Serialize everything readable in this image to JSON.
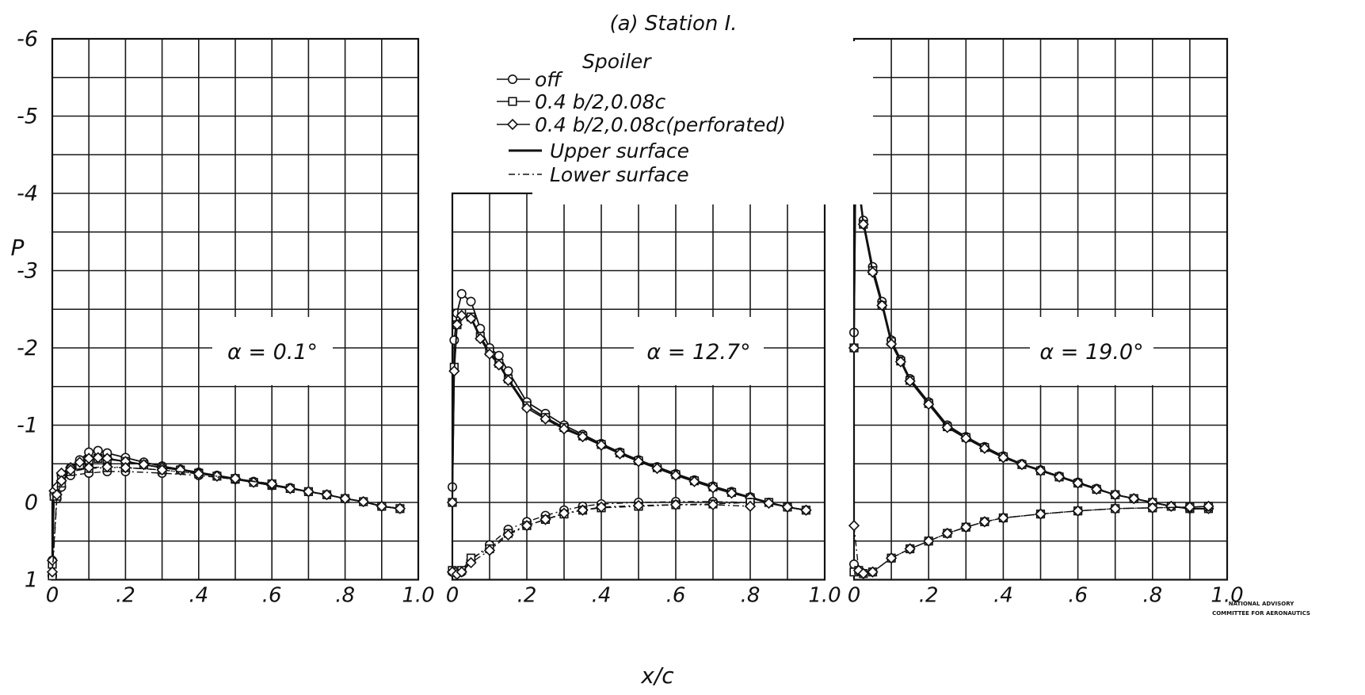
{
  "title": "(a) Station I.",
  "ylabel": "P",
  "xlabel": "x/c",
  "legend": {
    "heading": "Spoiler",
    "entries": [
      {
        "label": "off",
        "marker": "circle"
      },
      {
        "label": "0.4 b/2,0.08c",
        "marker": "square"
      },
      {
        "label": "0.4 b/2,0.08c(perforated)",
        "marker": "diamond"
      }
    ],
    "line_styles": [
      {
        "label": "Upper surface",
        "dash": "solid"
      },
      {
        "label": "Lower surface",
        "dash": "dashed"
      }
    ]
  },
  "watermark": [
    "NATIONAL ADVISORY",
    "COMMITTEE FOR AERONAUTICS"
  ],
  "chart_data": [
    {
      "type": "line",
      "annotation": "α = 0.1°",
      "xlim": [
        0,
        1.0
      ],
      "ylim": [
        1,
        -6
      ],
      "y_inverted": true,
      "xticks": [
        "0",
        ".2",
        ".4",
        ".6",
        ".8",
        "1.0"
      ],
      "yticks": [
        "-6",
        "-5",
        "-4",
        "-3",
        "-2",
        "-1",
        "0",
        "1"
      ],
      "grid": true,
      "series": [
        {
          "spoiler": "off",
          "surface": "upper",
          "x": [
            0,
            0.005,
            0.0125,
            0.025,
            0.05,
            0.075,
            0.1,
            0.125,
            0.15,
            0.2,
            0.25,
            0.3,
            0.35,
            0.4,
            0.45,
            0.5,
            0.55,
            0.6,
            0.65,
            0.7,
            0.75,
            0.8,
            0.85,
            0.9,
            0.95
          ],
          "y": [
            0.75,
            -0.1,
            -0.15,
            -0.35,
            -0.45,
            -0.55,
            -0.65,
            -0.67,
            -0.64,
            -0.58,
            -0.52,
            -0.47,
            -0.43,
            -0.39,
            -0.35,
            -0.31,
            -0.27,
            -0.23,
            -0.19,
            -0.14,
            -0.1,
            -0.05,
            -0.01,
            0.05,
            0.08
          ]
        },
        {
          "spoiler": "0.4 b/2,0.08c",
          "surface": "upper",
          "x": [
            0,
            0.005,
            0.0125,
            0.025,
            0.05,
            0.075,
            0.1,
            0.125,
            0.15,
            0.2,
            0.25,
            0.3,
            0.35,
            0.4,
            0.45,
            0.5,
            0.55,
            0.6,
            0.65,
            0.7,
            0.75,
            0.8,
            0.85,
            0.9,
            0.95
          ],
          "y": [
            0.8,
            -0.08,
            -0.12,
            -0.3,
            -0.4,
            -0.48,
            -0.55,
            -0.57,
            -0.56,
            -0.53,
            -0.49,
            -0.45,
            -0.42,
            -0.38,
            -0.34,
            -0.3,
            -0.26,
            -0.22,
            -0.18,
            -0.14,
            -0.1,
            -0.05,
            -0.01,
            0.05,
            0.08
          ]
        },
        {
          "spoiler": "0.4 b/2,0.08c(perforated)",
          "surface": "upper",
          "x": [
            0,
            0.005,
            0.0125,
            0.025,
            0.05,
            0.075,
            0.1,
            0.125,
            0.15,
            0.2,
            0.25,
            0.3,
            0.35,
            0.4,
            0.45,
            0.5,
            0.55,
            0.6,
            0.65,
            0.7,
            0.75,
            0.8,
            0.85,
            0.9,
            0.95
          ],
          "y": [
            0.75,
            -0.15,
            -0.2,
            -0.38,
            -0.45,
            -0.52,
            -0.57,
            -0.58,
            -0.57,
            -0.53,
            -0.49,
            -0.45,
            -0.42,
            -0.38,
            -0.34,
            -0.3,
            -0.26,
            -0.22,
            -0.18,
            -0.14,
            -0.1,
            -0.05,
            -0.01,
            0.05,
            0.08
          ]
        },
        {
          "spoiler": "off",
          "surface": "lower",
          "x": [
            0,
            0.0125,
            0.025,
            0.05,
            0.1,
            0.15,
            0.2,
            0.3,
            0.4,
            0.5,
            0.6
          ],
          "y": [
            0.95,
            -0.05,
            -0.2,
            -0.35,
            -0.38,
            -0.4,
            -0.4,
            -0.38,
            -0.35,
            -0.3,
            -0.24
          ]
        },
        {
          "spoiler": "0.4 b/2,0.08c",
          "surface": "lower",
          "x": [
            0,
            0.0125,
            0.025,
            0.05,
            0.1,
            0.15,
            0.2,
            0.3,
            0.4,
            0.5,
            0.6
          ],
          "y": [
            0.95,
            -0.08,
            -0.25,
            -0.4,
            -0.44,
            -0.45,
            -0.45,
            -0.42,
            -0.37,
            -0.31,
            -0.24
          ]
        },
        {
          "spoiler": "0.4 b/2,0.08c(perforated)",
          "surface": "lower",
          "x": [
            0,
            0.0125,
            0.025,
            0.05,
            0.1,
            0.15,
            0.2,
            0.3,
            0.4,
            0.5,
            0.6
          ],
          "y": [
            0.9,
            -0.1,
            -0.28,
            -0.42,
            -0.45,
            -0.46,
            -0.45,
            -0.42,
            -0.37,
            -0.31,
            -0.24
          ]
        }
      ]
    },
    {
      "type": "line",
      "annotation": "α = 12.7°",
      "xlim": [
        0,
        1.0
      ],
      "ylim": [
        1,
        -4
      ],
      "y_inverted": true,
      "xticks": [
        "0",
        ".2",
        ".4",
        ".6",
        ".8",
        "1.0"
      ],
      "grid": true,
      "series": [
        {
          "spoiler": "off",
          "surface": "upper",
          "x": [
            0,
            0.005,
            0.0125,
            0.025,
            0.05,
            0.075,
            0.1,
            0.125,
            0.15,
            0.2,
            0.25,
            0.3,
            0.35,
            0.4,
            0.45,
            0.5,
            0.55,
            0.6,
            0.65,
            0.7,
            0.75,
            0.8,
            0.85,
            0.9,
            0.95
          ],
          "y": [
            -0.2,
            -2.1,
            -2.45,
            -2.7,
            -2.6,
            -2.25,
            -2.0,
            -1.9,
            -1.7,
            -1.3,
            -1.15,
            -1.0,
            -0.88,
            -0.76,
            -0.65,
            -0.55,
            -0.46,
            -0.37,
            -0.29,
            -0.21,
            -0.14,
            -0.07,
            0.0,
            0.06,
            0.1
          ]
        },
        {
          "spoiler": "0.4 b/2,0.08c",
          "surface": "upper",
          "x": [
            0,
            0.005,
            0.0125,
            0.025,
            0.05,
            0.075,
            0.1,
            0.125,
            0.15,
            0.2,
            0.25,
            0.3,
            0.35,
            0.4,
            0.45,
            0.5,
            0.55,
            0.6,
            0.65,
            0.7,
            0.75,
            0.8,
            0.85,
            0.9,
            0.95
          ],
          "y": [
            0.0,
            -1.75,
            -2.3,
            -2.45,
            -2.4,
            -2.15,
            -1.95,
            -1.8,
            -1.6,
            -1.25,
            -1.1,
            -0.97,
            -0.86,
            -0.75,
            -0.64,
            -0.54,
            -0.45,
            -0.36,
            -0.28,
            -0.2,
            -0.13,
            -0.06,
            0.0,
            0.06,
            0.1
          ]
        },
        {
          "spoiler": "0.4 b/2,0.08c(perforated)",
          "surface": "upper",
          "x": [
            0,
            0.005,
            0.0125,
            0.025,
            0.05,
            0.075,
            0.1,
            0.125,
            0.15,
            0.2,
            0.25,
            0.3,
            0.35,
            0.4,
            0.45,
            0.5,
            0.55,
            0.6,
            0.65,
            0.7,
            0.75,
            0.8,
            0.85,
            0.9,
            0.95
          ],
          "y": [
            0.0,
            -1.7,
            -2.3,
            -2.42,
            -2.38,
            -2.12,
            -1.92,
            -1.78,
            -1.58,
            -1.22,
            -1.08,
            -0.95,
            -0.85,
            -0.74,
            -0.63,
            -0.53,
            -0.44,
            -0.35,
            -0.27,
            -0.19,
            -0.12,
            -0.06,
            0.01,
            0.06,
            0.1
          ]
        },
        {
          "spoiler": "off",
          "surface": "lower",
          "x": [
            0,
            0.0125,
            0.025,
            0.05,
            0.1,
            0.15,
            0.2,
            0.25,
            0.3,
            0.35,
            0.4,
            0.5,
            0.6,
            0.7,
            0.8
          ],
          "y": [
            0.9,
            0.92,
            0.9,
            0.75,
            0.55,
            0.35,
            0.25,
            0.17,
            0.1,
            0.05,
            0.02,
            0.0,
            -0.01,
            -0.01,
            0.0
          ]
        },
        {
          "spoiler": "0.4 b/2,0.08c",
          "surface": "lower",
          "x": [
            0,
            0.0125,
            0.025,
            0.05,
            0.1,
            0.15,
            0.2,
            0.25,
            0.3,
            0.35,
            0.4,
            0.5,
            0.6,
            0.7,
            0.8
          ],
          "y": [
            0.88,
            0.9,
            0.88,
            0.72,
            0.6,
            0.4,
            0.3,
            0.22,
            0.15,
            0.1,
            0.07,
            0.05,
            0.03,
            0.02,
            0.0
          ]
        },
        {
          "spoiler": "0.4 b/2,0.08c(perforated)",
          "surface": "lower",
          "x": [
            0,
            0.0125,
            0.025,
            0.05,
            0.1,
            0.15,
            0.2,
            0.25,
            0.3,
            0.35,
            0.4,
            0.5,
            0.6,
            0.7,
            0.8
          ],
          "y": [
            0.9,
            0.93,
            0.9,
            0.78,
            0.62,
            0.42,
            0.3,
            0.22,
            0.14,
            0.1,
            0.06,
            0.04,
            0.03,
            0.03,
            0.05
          ]
        }
      ]
    },
    {
      "type": "line",
      "annotation": "α = 19.0°",
      "xlim": [
        0,
        1.0
      ],
      "ylim": [
        1,
        -6
      ],
      "y_inverted": true,
      "xticks": [
        "0",
        ".2",
        ".4",
        ".6",
        ".8",
        "1.0"
      ],
      "grid": true,
      "series": [
        {
          "spoiler": "off",
          "surface": "upper",
          "x": [
            0,
            0.005,
            0.0125,
            0.025,
            0.05,
            0.075,
            0.1,
            0.125,
            0.15,
            0.2,
            0.25,
            0.3,
            0.35,
            0.4,
            0.45,
            0.5,
            0.55,
            0.6,
            0.65,
            0.7,
            0.75,
            0.8,
            0.85,
            0.9,
            0.95
          ],
          "y": [
            -2.2,
            -4.85,
            -4.15,
            -3.65,
            -3.05,
            -2.6,
            -2.1,
            -1.85,
            -1.6,
            -1.3,
            -1.0,
            -0.85,
            -0.72,
            -0.6,
            -0.5,
            -0.42,
            -0.34,
            -0.26,
            -0.18,
            -0.1,
            -0.05,
            0.0,
            0.05,
            0.08,
            0.08
          ]
        },
        {
          "spoiler": "0.4 b/2,0.08c",
          "surface": "upper",
          "x": [
            0,
            0.005,
            0.0125,
            0.025,
            0.05,
            0.075,
            0.1,
            0.125,
            0.15,
            0.2,
            0.25,
            0.3,
            0.35,
            0.4,
            0.45,
            0.5,
            0.55,
            0.6,
            0.65,
            0.7,
            0.75,
            0.8,
            0.85,
            0.9,
            0.95
          ],
          "y": [
            -2.0,
            -4.7,
            -4.1,
            -3.6,
            -3.0,
            -2.55,
            -2.08,
            -1.83,
            -1.58,
            -1.28,
            -0.98,
            -0.84,
            -0.71,
            -0.59,
            -0.49,
            -0.41,
            -0.33,
            -0.25,
            -0.17,
            -0.1,
            -0.05,
            0.0,
            0.05,
            0.08,
            0.08
          ]
        },
        {
          "spoiler": "0.4 b/2,0.08c(perforated)",
          "surface": "upper",
          "x": [
            0,
            0.005,
            0.0125,
            0.025,
            0.05,
            0.075,
            0.1,
            0.125,
            0.15,
            0.2,
            0.25,
            0.3,
            0.35,
            0.4,
            0.45,
            0.5,
            0.55,
            0.6,
            0.65,
            0.7,
            0.75,
            0.8,
            0.85,
            0.9,
            0.95
          ],
          "y": [
            -2.0,
            -4.6,
            -4.05,
            -3.6,
            -2.98,
            -2.55,
            -2.05,
            -1.82,
            -1.57,
            -1.27,
            -0.97,
            -0.83,
            -0.7,
            -0.58,
            -0.49,
            -0.41,
            -0.33,
            -0.25,
            -0.17,
            -0.1,
            -0.05,
            0.0,
            0.05,
            0.08,
            0.08
          ]
        },
        {
          "spoiler": "off",
          "surface": "lower",
          "x": [
            0,
            0.0125,
            0.025,
            0.05,
            0.1,
            0.15,
            0.2,
            0.25,
            0.3,
            0.35,
            0.4,
            0.5,
            0.6,
            0.7,
            0.8,
            0.9,
            0.95
          ],
          "y": [
            0.8,
            0.88,
            0.92,
            0.9,
            0.72,
            0.6,
            0.5,
            0.4,
            0.32,
            0.25,
            0.2,
            0.15,
            0.11,
            0.08,
            0.07,
            0.06,
            0.05
          ]
        },
        {
          "spoiler": "0.4 b/2,0.08c",
          "surface": "lower",
          "x": [
            0,
            0.0125,
            0.025,
            0.05,
            0.1,
            0.15,
            0.2,
            0.25,
            0.3,
            0.35,
            0.4,
            0.5,
            0.6,
            0.7,
            0.8,
            0.9,
            0.95
          ],
          "y": [
            0.9,
            0.88,
            0.92,
            0.9,
            0.72,
            0.6,
            0.5,
            0.4,
            0.32,
            0.25,
            0.2,
            0.15,
            0.11,
            0.08,
            0.07,
            0.06,
            0.05
          ]
        },
        {
          "spoiler": "0.4 b/2,0.08c(perforated)",
          "surface": "lower",
          "x": [
            0,
            0.0125,
            0.025,
            0.05,
            0.1,
            0.15,
            0.2,
            0.25,
            0.3,
            0.35,
            0.4,
            0.5,
            0.6,
            0.7,
            0.8,
            0.9,
            0.95
          ],
          "y": [
            0.3,
            0.88,
            0.92,
            0.9,
            0.72,
            0.6,
            0.5,
            0.4,
            0.32,
            0.25,
            0.2,
            0.15,
            0.11,
            0.08,
            0.07,
            0.06,
            0.05
          ]
        }
      ]
    }
  ]
}
